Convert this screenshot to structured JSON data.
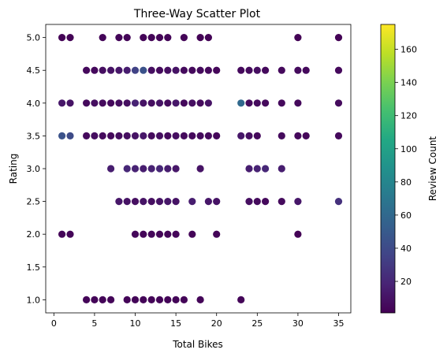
{
  "chart_data": {
    "type": "scatter",
    "title": "Three-Way Scatter Plot",
    "xlabel": "Total Bikes",
    "ylabel": "Rating",
    "xlim": [
      -1,
      36.5
    ],
    "ylim": [
      0.8,
      5.2
    ],
    "xticks": [
      0,
      5,
      10,
      15,
      20,
      25,
      30,
      35
    ],
    "yticks": [
      1.0,
      1.5,
      2.0,
      2.5,
      3.0,
      3.5,
      4.0,
      4.5,
      5.0
    ],
    "grid": false,
    "colormap": "viridis",
    "colorbar": {
      "label": "Review Count",
      "range": [
        1,
        175
      ],
      "ticks": [
        20,
        40,
        60,
        80,
        100,
        120,
        140,
        160
      ]
    },
    "point_fields": [
      "total_bikes",
      "rating",
      "review_count"
    ],
    "points": [
      [
        1,
        5.0,
        2
      ],
      [
        2,
        5.0,
        2
      ],
      [
        6,
        5.0,
        3
      ],
      [
        8,
        5.0,
        3
      ],
      [
        9,
        5.0,
        3
      ],
      [
        11,
        5.0,
        3
      ],
      [
        12,
        5.0,
        3
      ],
      [
        13,
        5.0,
        3
      ],
      [
        14,
        5.0,
        3
      ],
      [
        16,
        5.0,
        3
      ],
      [
        18,
        5.0,
        2
      ],
      [
        19,
        5.0,
        2
      ],
      [
        30,
        5.0,
        2
      ],
      [
        35,
        5.0,
        2
      ],
      [
        4,
        4.5,
        5
      ],
      [
        5,
        4.5,
        5
      ],
      [
        6,
        4.5,
        8
      ],
      [
        7,
        4.5,
        10
      ],
      [
        8,
        4.5,
        12
      ],
      [
        9,
        4.5,
        15
      ],
      [
        10,
        4.5,
        35
      ],
      [
        11,
        4.5,
        45
      ],
      [
        12,
        4.5,
        8
      ],
      [
        13,
        4.5,
        6
      ],
      [
        14,
        4.5,
        8
      ],
      [
        15,
        4.5,
        10
      ],
      [
        16,
        4.5,
        6
      ],
      [
        17,
        4.5,
        5
      ],
      [
        18,
        4.5,
        6
      ],
      [
        19,
        4.5,
        5
      ],
      [
        20,
        4.5,
        4
      ],
      [
        23,
        4.5,
        5
      ],
      [
        24,
        4.5,
        6
      ],
      [
        25,
        4.5,
        8
      ],
      [
        26,
        4.5,
        5
      ],
      [
        28,
        4.5,
        5
      ],
      [
        30,
        4.5,
        6
      ],
      [
        31,
        4.5,
        5
      ],
      [
        35,
        4.5,
        5
      ],
      [
        1,
        4.0,
        12
      ],
      [
        2,
        4.0,
        10
      ],
      [
        4,
        4.0,
        5
      ],
      [
        5,
        4.0,
        8
      ],
      [
        6,
        4.0,
        6
      ],
      [
        7,
        4.0,
        5
      ],
      [
        8,
        4.0,
        7
      ],
      [
        9,
        4.0,
        8
      ],
      [
        10,
        4.0,
        18
      ],
      [
        11,
        4.0,
        10
      ],
      [
        12,
        4.0,
        8
      ],
      [
        13,
        4.0,
        10
      ],
      [
        14,
        4.0,
        6
      ],
      [
        15,
        4.0,
        12
      ],
      [
        16,
        4.0,
        5
      ],
      [
        17,
        4.0,
        8
      ],
      [
        18,
        4.0,
        6
      ],
      [
        19,
        4.0,
        10
      ],
      [
        23,
        4.0,
        60
      ],
      [
        24,
        4.0,
        5
      ],
      [
        25,
        4.0,
        6
      ],
      [
        26,
        4.0,
        5
      ],
      [
        28,
        4.0,
        5
      ],
      [
        30,
        4.0,
        5
      ],
      [
        35,
        4.0,
        6
      ],
      [
        1,
        3.5,
        45
      ],
      [
        2,
        3.5,
        40
      ],
      [
        4,
        3.5,
        5
      ],
      [
        5,
        3.5,
        8
      ],
      [
        6,
        3.5,
        6
      ],
      [
        7,
        3.5,
        5
      ],
      [
        8,
        3.5,
        7
      ],
      [
        9,
        3.5,
        8
      ],
      [
        10,
        3.5,
        10
      ],
      [
        11,
        3.5,
        12
      ],
      [
        12,
        3.5,
        6
      ],
      [
        13,
        3.5,
        8
      ],
      [
        14,
        3.5,
        5
      ],
      [
        15,
        3.5,
        8
      ],
      [
        16,
        3.5,
        6
      ],
      [
        17,
        3.5,
        5
      ],
      [
        18,
        3.5,
        6
      ],
      [
        19,
        3.5,
        5
      ],
      [
        20,
        3.5,
        4
      ],
      [
        23,
        3.5,
        12
      ],
      [
        24,
        3.5,
        8
      ],
      [
        25,
        3.5,
        5
      ],
      [
        28,
        3.5,
        6
      ],
      [
        30,
        3.5,
        5
      ],
      [
        31,
        3.5,
        4
      ],
      [
        35,
        3.5,
        5
      ],
      [
        7,
        3.0,
        15
      ],
      [
        9,
        3.0,
        20
      ],
      [
        10,
        3.0,
        18
      ],
      [
        11,
        3.0,
        15
      ],
      [
        12,
        3.0,
        18
      ],
      [
        13,
        3.0,
        20
      ],
      [
        14,
        3.0,
        15
      ],
      [
        15,
        3.0,
        12
      ],
      [
        18,
        3.0,
        10
      ],
      [
        24,
        3.0,
        15
      ],
      [
        25,
        3.0,
        18
      ],
      [
        26,
        3.0,
        20
      ],
      [
        28,
        3.0,
        15
      ],
      [
        8,
        2.5,
        12
      ],
      [
        9,
        2.5,
        10
      ],
      [
        10,
        2.5,
        8
      ],
      [
        11,
        2.5,
        10
      ],
      [
        12,
        2.5,
        8
      ],
      [
        13,
        2.5,
        10
      ],
      [
        14,
        2.5,
        12
      ],
      [
        15,
        2.5,
        10
      ],
      [
        17,
        2.5,
        15
      ],
      [
        19,
        2.5,
        12
      ],
      [
        20,
        2.5,
        10
      ],
      [
        24,
        2.5,
        8
      ],
      [
        25,
        2.5,
        6
      ],
      [
        26,
        2.5,
        5
      ],
      [
        28,
        2.5,
        6
      ],
      [
        30,
        2.5,
        12
      ],
      [
        35,
        2.5,
        25
      ],
      [
        1,
        2.0,
        3
      ],
      [
        2,
        2.0,
        3
      ],
      [
        10,
        2.0,
        4
      ],
      [
        11,
        2.0,
        3
      ],
      [
        12,
        2.0,
        4
      ],
      [
        13,
        2.0,
        3
      ],
      [
        14,
        2.0,
        3
      ],
      [
        15,
        2.0,
        4
      ],
      [
        17,
        2.0,
        3
      ],
      [
        20,
        2.0,
        3
      ],
      [
        30,
        2.0,
        2
      ],
      [
        4,
        1.0,
        3
      ],
      [
        5,
        1.0,
        3
      ],
      [
        6,
        1.0,
        3
      ],
      [
        7,
        1.0,
        3
      ],
      [
        9,
        1.0,
        3
      ],
      [
        10,
        1.0,
        3
      ],
      [
        11,
        1.0,
        3
      ],
      [
        12,
        1.0,
        3
      ],
      [
        13,
        1.0,
        3
      ],
      [
        14,
        1.0,
        3
      ],
      [
        15,
        1.0,
        3
      ],
      [
        16,
        1.0,
        3
      ],
      [
        18,
        1.0,
        3
      ],
      [
        23,
        1.0,
        3
      ]
    ]
  }
}
